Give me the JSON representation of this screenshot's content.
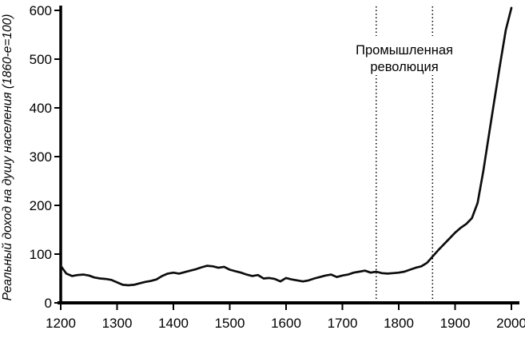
{
  "chart_data": {
    "type": "line",
    "title": "",
    "xlabel": "",
    "ylabel": "Реальный доход на душу населения (1860-е=100)",
    "xlim": [
      1200,
      2000
    ],
    "ylim": [
      0,
      600
    ],
    "x_ticks": [
      1200,
      1300,
      1400,
      1500,
      1600,
      1700,
      1800,
      1900,
      2000
    ],
    "y_ticks": [
      0,
      100,
      200,
      300,
      400,
      500,
      600
    ],
    "grid": false,
    "legend": "none",
    "background_color": "#ffffff",
    "line_color": "#0d0d0d",
    "axis_color": "#000000",
    "annotations": [
      {
        "type": "vline-pair",
        "line_style": "dotted",
        "x_values": [
          1760,
          1860
        ],
        "text": [
          "Промышленная",
          "революция"
        ]
      }
    ],
    "series": [
      {
        "name": "Реальный доход на душу населения",
        "x": [
          1200,
          1210,
          1220,
          1230,
          1240,
          1250,
          1260,
          1270,
          1280,
          1290,
          1300,
          1310,
          1320,
          1330,
          1340,
          1350,
          1360,
          1370,
          1380,
          1390,
          1400,
          1410,
          1420,
          1430,
          1440,
          1450,
          1460,
          1470,
          1480,
          1490,
          1500,
          1510,
          1520,
          1530,
          1540,
          1550,
          1560,
          1570,
          1580,
          1590,
          1600,
          1610,
          1620,
          1630,
          1640,
          1650,
          1660,
          1670,
          1680,
          1690,
          1700,
          1710,
          1720,
          1730,
          1740,
          1750,
          1760,
          1770,
          1780,
          1790,
          1800,
          1810,
          1820,
          1830,
          1840,
          1850,
          1860,
          1870,
          1880,
          1890,
          1900,
          1910,
          1920,
          1930,
          1940,
          1950,
          1960,
          1970,
          1980,
          1990,
          2000
        ],
        "y": [
          76,
          60,
          55,
          57,
          58,
          56,
          52,
          50,
          49,
          47,
          42,
          37,
          36,
          37,
          40,
          43,
          45,
          48,
          55,
          60,
          62,
          60,
          63,
          66,
          69,
          73,
          76,
          75,
          72,
          74,
          68,
          65,
          62,
          58,
          55,
          57,
          50,
          51,
          49,
          44,
          51,
          48,
          46,
          44,
          46,
          50,
          53,
          56,
          58,
          53,
          56,
          58,
          62,
          64,
          66,
          62,
          64,
          61,
          60,
          61,
          62,
          64,
          68,
          72,
          75,
          82,
          95,
          108,
          120,
          132,
          144,
          154,
          162,
          174,
          205,
          270,
          344,
          418,
          490,
          560,
          605
        ]
      }
    ]
  }
}
